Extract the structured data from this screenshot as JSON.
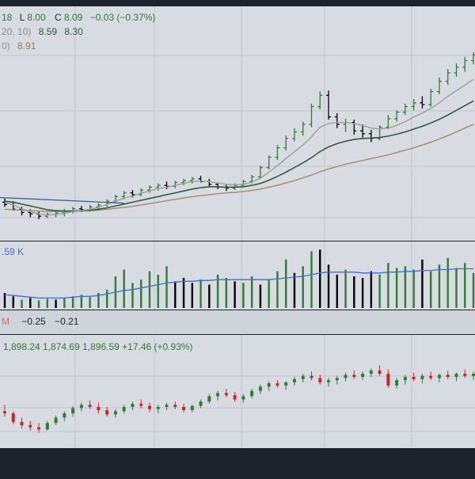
{
  "colors": {
    "frame_dark": "#1e222d",
    "pane_bg": "#d8dbe2",
    "pane_bg_alt": "#cfd3da",
    "grid": "#c2c6ce",
    "up": "#2e7d32",
    "down": "#000000",
    "ma_fast": "#9e9e9e",
    "ma_mid": "#2f5d3a",
    "ma_slow": "#a58b63",
    "trend_line": "#3a5a9a",
    "volume_ma": "#3b6fd9",
    "legend_green": "#2e7d32",
    "legend_dark": "#1e222d",
    "legend_gray": "#8d8f94",
    "legend_brown": "#9b7b4f",
    "legend_blue": "#3b6fd9",
    "legend_red": "#d66",
    "candle_up": "#2e7d32",
    "candle_down": "#c62828"
  },
  "legend": {
    "price_line1": {
      "frag_a": "18",
      "frag_b": "L",
      "b_val": "8.00",
      "frag_c": "C",
      "c_val": "8.09",
      "change": "−0.03 (−0.37%)"
    },
    "price_line2": {
      "params": "20, 10)",
      "v1": "8.59",
      "v2": "8.30"
    },
    "price_line3": {
      "params": "0)",
      "v1": "8.91"
    },
    "volume_line": {
      "value": ".59 K"
    },
    "osc_line": {
      "label": "M",
      "v1": "−0.25",
      "v2": "−0.21"
    },
    "index_line": {
      "values": "1,898.24   1,874.69   1,896.59   +17.46 (+0.93%)"
    }
  },
  "chart_data": [
    {
      "type": "bar",
      "pane": "price",
      "ohlc": [
        [
          9.2,
          9.28,
          9.1,
          9.15
        ],
        [
          9.15,
          9.22,
          9.02,
          9.05
        ],
        [
          9.05,
          9.1,
          8.92,
          8.98
        ],
        [
          8.98,
          9.05,
          8.88,
          8.95
        ],
        [
          8.95,
          9.0,
          8.84,
          8.9
        ],
        [
          8.9,
          8.98,
          8.86,
          8.94
        ],
        [
          8.94,
          9.02,
          8.88,
          8.97
        ],
        [
          8.97,
          9.06,
          8.9,
          9.0
        ],
        [
          9.0,
          9.1,
          8.96,
          9.06
        ],
        [
          9.06,
          9.12,
          8.99,
          9.04
        ],
        [
          9.04,
          9.14,
          9.0,
          9.1
        ],
        [
          9.1,
          9.18,
          9.05,
          9.14
        ],
        [
          9.14,
          9.26,
          9.1,
          9.22
        ],
        [
          9.22,
          9.36,
          9.18,
          9.32
        ],
        [
          9.32,
          9.44,
          9.26,
          9.4
        ],
        [
          9.4,
          9.46,
          9.3,
          9.36
        ],
        [
          9.36,
          9.5,
          9.33,
          9.46
        ],
        [
          9.46,
          9.56,
          9.4,
          9.52
        ],
        [
          9.52,
          9.6,
          9.45,
          9.56
        ],
        [
          9.56,
          9.64,
          9.48,
          9.54
        ],
        [
          9.54,
          9.66,
          9.5,
          9.62
        ],
        [
          9.62,
          9.7,
          9.56,
          9.66
        ],
        [
          9.66,
          9.74,
          9.6,
          9.7
        ],
        [
          9.7,
          9.76,
          9.62,
          9.64
        ],
        [
          9.64,
          9.7,
          9.54,
          9.58
        ],
        [
          9.58,
          9.62,
          9.48,
          9.52
        ],
        [
          9.52,
          9.58,
          9.44,
          9.5
        ],
        [
          9.5,
          9.6,
          9.46,
          9.56
        ],
        [
          9.56,
          9.68,
          9.52,
          9.64
        ],
        [
          9.64,
          9.78,
          9.6,
          9.74
        ],
        [
          9.74,
          9.98,
          9.7,
          9.94
        ],
        [
          9.94,
          10.2,
          9.9,
          10.16
        ],
        [
          10.16,
          10.42,
          10.1,
          10.36
        ],
        [
          10.36,
          10.62,
          10.3,
          10.56
        ],
        [
          10.56,
          10.78,
          10.5,
          10.7
        ],
        [
          10.7,
          10.92,
          10.62,
          10.86
        ],
        [
          10.86,
          11.3,
          10.8,
          11.24
        ],
        [
          11.24,
          11.56,
          11.18,
          11.48
        ],
        [
          11.48,
          11.58,
          10.96,
          11.02
        ],
        [
          11.02,
          11.1,
          10.78,
          10.86
        ],
        [
          10.86,
          10.98,
          10.7,
          10.9
        ],
        [
          10.9,
          10.96,
          10.64,
          10.72
        ],
        [
          10.72,
          10.86,
          10.58,
          10.66
        ],
        [
          10.66,
          10.74,
          10.48,
          10.56
        ],
        [
          10.56,
          10.84,
          10.52,
          10.8
        ],
        [
          10.8,
          11.06,
          10.76,
          10.98
        ],
        [
          10.98,
          11.16,
          10.92,
          11.12
        ],
        [
          11.12,
          11.3,
          11.06,
          11.24
        ],
        [
          11.24,
          11.4,
          11.16,
          11.32
        ],
        [
          11.32,
          11.46,
          11.2,
          11.28
        ],
        [
          11.28,
          11.62,
          11.24,
          11.56
        ],
        [
          11.56,
          11.86,
          11.5,
          11.78
        ],
        [
          11.78,
          12.04,
          11.7,
          11.96
        ],
        [
          11.96,
          12.16,
          11.88,
          12.08
        ],
        [
          12.08,
          12.3,
          11.98,
          12.22
        ],
        [
          12.22,
          12.4,
          12.14,
          12.34
        ]
      ],
      "ma_fast": [
        9.2,
        9.14,
        9.06,
        9.0,
        8.95,
        8.93,
        8.94,
        8.96,
        9.0,
        9.02,
        9.05,
        9.09,
        9.15,
        9.22,
        9.29,
        9.33,
        9.39,
        9.44,
        9.49,
        9.52,
        9.56,
        9.6,
        9.64,
        9.65,
        9.64,
        9.61,
        9.58,
        9.57,
        9.58,
        9.63,
        9.71,
        9.84,
        9.98,
        10.13,
        10.28,
        10.42,
        10.6,
        10.8,
        10.88,
        10.9,
        10.9,
        10.88,
        10.84,
        10.78,
        10.76,
        10.78,
        10.84,
        10.92,
        11.02,
        11.1,
        11.2,
        11.32,
        11.46,
        11.58,
        11.7,
        11.82
      ],
      "ma_mid": [
        9.22,
        9.2,
        9.16,
        9.12,
        9.08,
        9.04,
        9.02,
        9.01,
        9.01,
        9.02,
        9.03,
        9.05,
        9.08,
        9.12,
        9.16,
        9.2,
        9.24,
        9.28,
        9.32,
        9.36,
        9.4,
        9.44,
        9.48,
        9.51,
        9.53,
        9.53,
        9.52,
        9.52,
        9.53,
        9.56,
        9.6,
        9.67,
        9.75,
        9.84,
        9.94,
        10.04,
        10.15,
        10.28,
        10.38,
        10.45,
        10.5,
        10.54,
        10.56,
        10.57,
        10.58,
        10.61,
        10.65,
        10.7,
        10.76,
        10.82,
        10.89,
        10.97,
        11.06,
        11.16,
        11.26,
        11.36
      ],
      "ma_slow": [
        9.05,
        9.04,
        9.03,
        9.02,
        9.01,
        9.0,
        9.0,
        9.0,
        9.0,
        9.01,
        9.02,
        9.03,
        9.05,
        9.07,
        9.09,
        9.11,
        9.14,
        9.17,
        9.2,
        9.23,
        9.26,
        9.29,
        9.32,
        9.34,
        9.36,
        9.38,
        9.4,
        9.41,
        9.43,
        9.45,
        9.48,
        9.52,
        9.56,
        9.61,
        9.66,
        9.72,
        9.78,
        9.85,
        9.91,
        9.96,
        10.01,
        10.05,
        10.09,
        10.13,
        10.17,
        10.21,
        10.26,
        10.31,
        10.36,
        10.42,
        10.48,
        10.55,
        10.62,
        10.7,
        10.78,
        10.86
      ],
      "trend_line": [
        [
          0,
          9.3
        ],
        [
          14,
          9.18
        ]
      ]
    },
    {
      "type": "bar",
      "pane": "volume",
      "values": [
        18,
        14,
        10,
        12,
        9,
        11,
        10,
        12,
        14,
        16,
        13,
        18,
        22,
        38,
        46,
        30,
        34,
        44,
        40,
        50,
        32,
        36,
        30,
        34,
        28,
        40,
        36,
        32,
        30,
        38,
        28,
        34,
        44,
        58,
        42,
        50,
        68,
        70,
        52,
        40,
        46,
        38,
        36,
        44,
        40,
        54,
        48,
        50,
        46,
        58,
        44,
        52,
        60,
        48,
        54,
        42
      ],
      "up": [
        false,
        false,
        true,
        false,
        true,
        true,
        false,
        true,
        true,
        true,
        true,
        true,
        true,
        true,
        true,
        true,
        true,
        true,
        true,
        true,
        false,
        false,
        false,
        true,
        false,
        true,
        true,
        false,
        true,
        true,
        false,
        true,
        true,
        true,
        false,
        true,
        true,
        false,
        false,
        false,
        true,
        false,
        false,
        false,
        true,
        true,
        true,
        true,
        true,
        false,
        true,
        true,
        true,
        true,
        true,
        true
      ],
      "ma": [
        16,
        15,
        14,
        13,
        12,
        12,
        12,
        12,
        13,
        14,
        14,
        15,
        17,
        19,
        21,
        22,
        24,
        26,
        28,
        30,
        31,
        32,
        32,
        33,
        33,
        34,
        34,
        34,
        34,
        34,
        34,
        34,
        35,
        36,
        37,
        38,
        40,
        42,
        43,
        43,
        43,
        43,
        42,
        42,
        42,
        43,
        43,
        44,
        44,
        45,
        45,
        46,
        46,
        47,
        47,
        47
      ]
    },
    {
      "type": "bar",
      "pane": "index",
      "ohlc": [
        [
          1830,
          1842,
          1820,
          1826
        ],
        [
          1826,
          1830,
          1806,
          1810
        ],
        [
          1810,
          1818,
          1798,
          1804
        ],
        [
          1804,
          1812,
          1794,
          1800
        ],
        [
          1800,
          1808,
          1790,
          1796
        ],
        [
          1796,
          1812,
          1794,
          1808
        ],
        [
          1808,
          1822,
          1804,
          1818
        ],
        [
          1818,
          1830,
          1812,
          1826
        ],
        [
          1826,
          1840,
          1820,
          1836
        ],
        [
          1836,
          1846,
          1830,
          1842
        ],
        [
          1842,
          1850,
          1834,
          1838
        ],
        [
          1838,
          1846,
          1826,
          1832
        ],
        [
          1832,
          1838,
          1820,
          1824
        ],
        [
          1824,
          1834,
          1818,
          1830
        ],
        [
          1830,
          1842,
          1826,
          1838
        ],
        [
          1838,
          1848,
          1832,
          1844
        ],
        [
          1844,
          1852,
          1836,
          1840
        ],
        [
          1840,
          1846,
          1828,
          1834
        ],
        [
          1834,
          1842,
          1826,
          1838
        ],
        [
          1838,
          1846,
          1832,
          1842
        ],
        [
          1842,
          1848,
          1834,
          1838
        ],
        [
          1838,
          1844,
          1828,
          1832
        ],
        [
          1832,
          1842,
          1828,
          1840
        ],
        [
          1840,
          1852,
          1836,
          1848
        ],
        [
          1848,
          1862,
          1844,
          1858
        ],
        [
          1858,
          1868,
          1850,
          1864
        ],
        [
          1864,
          1872,
          1856,
          1860
        ],
        [
          1860,
          1866,
          1848,
          1852
        ],
        [
          1852,
          1862,
          1846,
          1858
        ],
        [
          1858,
          1872,
          1854,
          1868
        ],
        [
          1868,
          1880,
          1862,
          1876
        ],
        [
          1876,
          1886,
          1868,
          1882
        ],
        [
          1882,
          1888,
          1874,
          1878
        ],
        [
          1878,
          1886,
          1870,
          1884
        ],
        [
          1884,
          1894,
          1878,
          1890
        ],
        [
          1890,
          1900,
          1884,
          1896
        ],
        [
          1896,
          1904,
          1888,
          1892
        ],
        [
          1892,
          1898,
          1880,
          1884
        ],
        [
          1884,
          1892,
          1876,
          1888
        ],
        [
          1888,
          1896,
          1880,
          1892
        ],
        [
          1892,
          1902,
          1886,
          1898
        ],
        [
          1898,
          1906,
          1890,
          1894
        ],
        [
          1894,
          1904,
          1888,
          1900
        ],
        [
          1900,
          1910,
          1894,
          1906
        ],
        [
          1906,
          1916,
          1896,
          1900
        ],
        [
          1900,
          1908,
          1874,
          1878
        ],
        [
          1878,
          1892,
          1872,
          1888
        ],
        [
          1888,
          1898,
          1880,
          1894
        ],
        [
          1894,
          1902,
          1886,
          1890
        ],
        [
          1890,
          1900,
          1882,
          1896
        ],
        [
          1896,
          1904,
          1888,
          1892
        ],
        [
          1892,
          1900,
          1884,
          1898
        ],
        [
          1898,
          1906,
          1890,
          1894
        ],
        [
          1894,
          1902,
          1886,
          1900
        ],
        [
          1900,
          1908,
          1892,
          1896
        ],
        [
          1896,
          1904,
          1888,
          1900
        ]
      ]
    }
  ]
}
